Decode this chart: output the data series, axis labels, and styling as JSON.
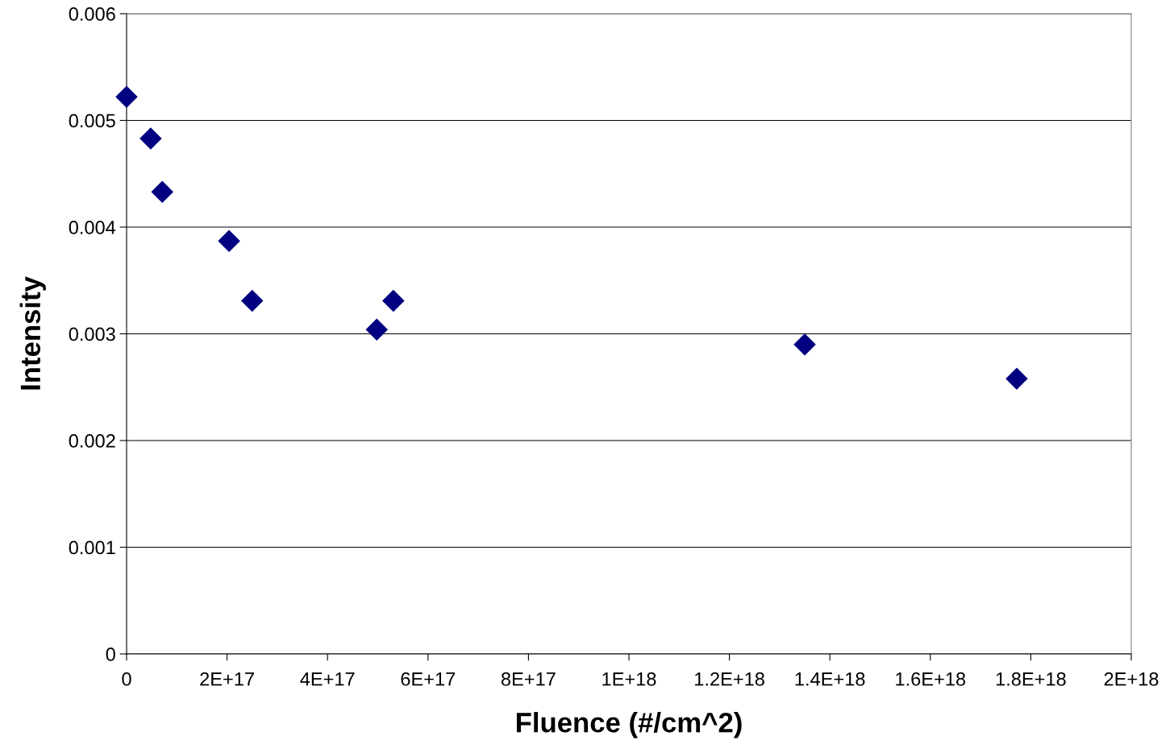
{
  "chart_data": {
    "type": "scatter",
    "xlabel": "Fluence (#/cm^2)",
    "ylabel": "Intensity",
    "x": [
      0,
      4.8e+16,
      7.1e+16,
      2.04e+17,
      2.5e+17,
      4.98e+17,
      5.31e+17,
      1.35e+18,
      1.772e+18
    ],
    "series": [
      {
        "color": "#000080",
        "values": [
          0.00522,
          0.00483,
          0.00433,
          0.00387,
          0.00331,
          0.00304,
          0.00331,
          0.0029,
          0.00258
        ]
      }
    ],
    "marker": "diamond",
    "xlim": [
      0,
      2e+18
    ],
    "xticks": [
      0,
      {
        "value": 2e+17,
        "label": "2E+17"
      },
      {
        "value": 4e+17,
        "label": "4E+17"
      },
      {
        "value": 6e+17,
        "label": "6E+17"
      },
      {
        "value": 8e+17,
        "label": "8E+17"
      },
      {
        "value": 1e+18,
        "label": "1E+18"
      },
      {
        "value": 1.2e+18,
        "label": "1.2E+18"
      },
      {
        "value": 1.4e+18,
        "label": "1.4E+18"
      },
      {
        "value": 1.6e+18,
        "label": "1.6E+18"
      },
      {
        "value": 1.8e+18,
        "label": "1.8E+18"
      },
      {
        "value": 2e+18,
        "label": "2E+18"
      }
    ],
    "ylim": [
      0,
      0.006
    ],
    "yticks": [
      0,
      0.001,
      0.002,
      0.003,
      0.004,
      0.005,
      0.006
    ],
    "grid": "y",
    "legend": false
  }
}
